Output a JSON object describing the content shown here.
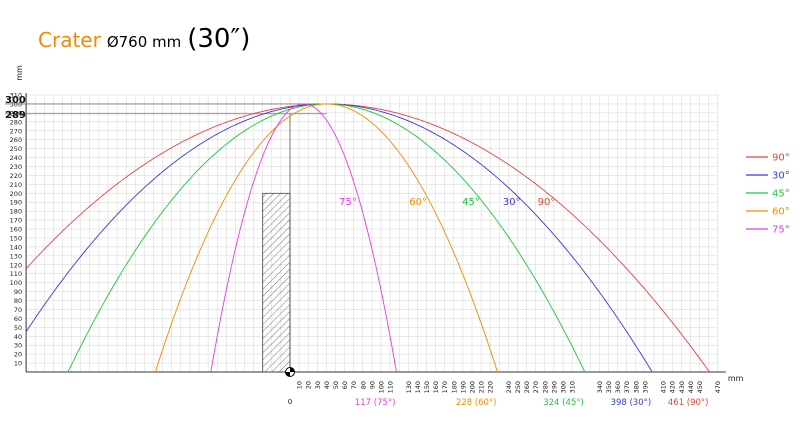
{
  "header": {
    "brand": "Crater",
    "diameter": "Ø760 mm",
    "inch": "(30″)"
  },
  "colors": {
    "brand": "#f28a00",
    "grid": "#d4d4d4",
    "axis": "#333333"
  },
  "chart_data": {
    "type": "line",
    "xlabel": "mm",
    "ylabel": "mm",
    "xlim": [
      -290,
      470
    ],
    "ylim": [
      0,
      310
    ],
    "x_ticks": [
      10,
      20,
      30,
      40,
      50,
      60,
      70,
      80,
      90,
      100,
      110,
      130,
      140,
      150,
      160,
      170,
      180,
      190,
      200,
      210,
      220,
      240,
      250,
      260,
      270,
      280,
      290,
      300,
      310,
      340,
      350,
      360,
      370,
      380,
      390,
      410,
      420,
      430,
      440,
      450,
      470
    ],
    "y_ticks": [
      10,
      20,
      30,
      40,
      50,
      60,
      70,
      80,
      90,
      100,
      110,
      120,
      130,
      140,
      150,
      160,
      170,
      180,
      190,
      200,
      210,
      220,
      230,
      240,
      250,
      260,
      270,
      280,
      290,
      300,
      310
    ],
    "origin_label": "0",
    "peak_labels": [
      "300",
      "289"
    ],
    "obstacle": {
      "x_start": -30,
      "x_end": 0,
      "height": 200
    },
    "series": [
      {
        "name": "90°",
        "color": "#e2463b",
        "apex": [
          40,
          300
        ],
        "range": 461,
        "end_label": "461 (90°)"
      },
      {
        "name": "30°",
        "color": "#3b3bd6",
        "apex": [
          40,
          300
        ],
        "range": 398,
        "end_label": "398 (30°)"
      },
      {
        "name": "45°",
        "color": "#22c43c",
        "apex": [
          40,
          300
        ],
        "range": 324,
        "end_label": "324 (45°)"
      },
      {
        "name": "60°",
        "color": "#f28a00",
        "apex": [
          40,
          300
        ],
        "range": 228,
        "end_label": "228 (60°)"
      },
      {
        "name": "75°",
        "color": "#e23de2",
        "apex": [
          15,
          300
        ],
        "range": 117,
        "end_label": "117 (75°)"
      }
    ],
    "inline_labels": [
      {
        "text": "75°",
        "color": "#e23de2"
      },
      {
        "text": "60°",
        "color": "#f28a00"
      },
      {
        "text": "45°",
        "color": "#22c43c"
      },
      {
        "text": "30°",
        "color": "#3b3bd6"
      },
      {
        "text": "90°",
        "color": "#e2463b"
      }
    ],
    "legend": {
      "placement": "right",
      "entries": [
        {
          "text": "90°",
          "color": "#e2463b"
        },
        {
          "text": "30°",
          "color": "#3b3bd6"
        },
        {
          "text": "45°",
          "color": "#22c43c"
        },
        {
          "text": "60°",
          "color": "#f28a00"
        },
        {
          "text": "75°",
          "color": "#e23de2"
        }
      ]
    }
  }
}
